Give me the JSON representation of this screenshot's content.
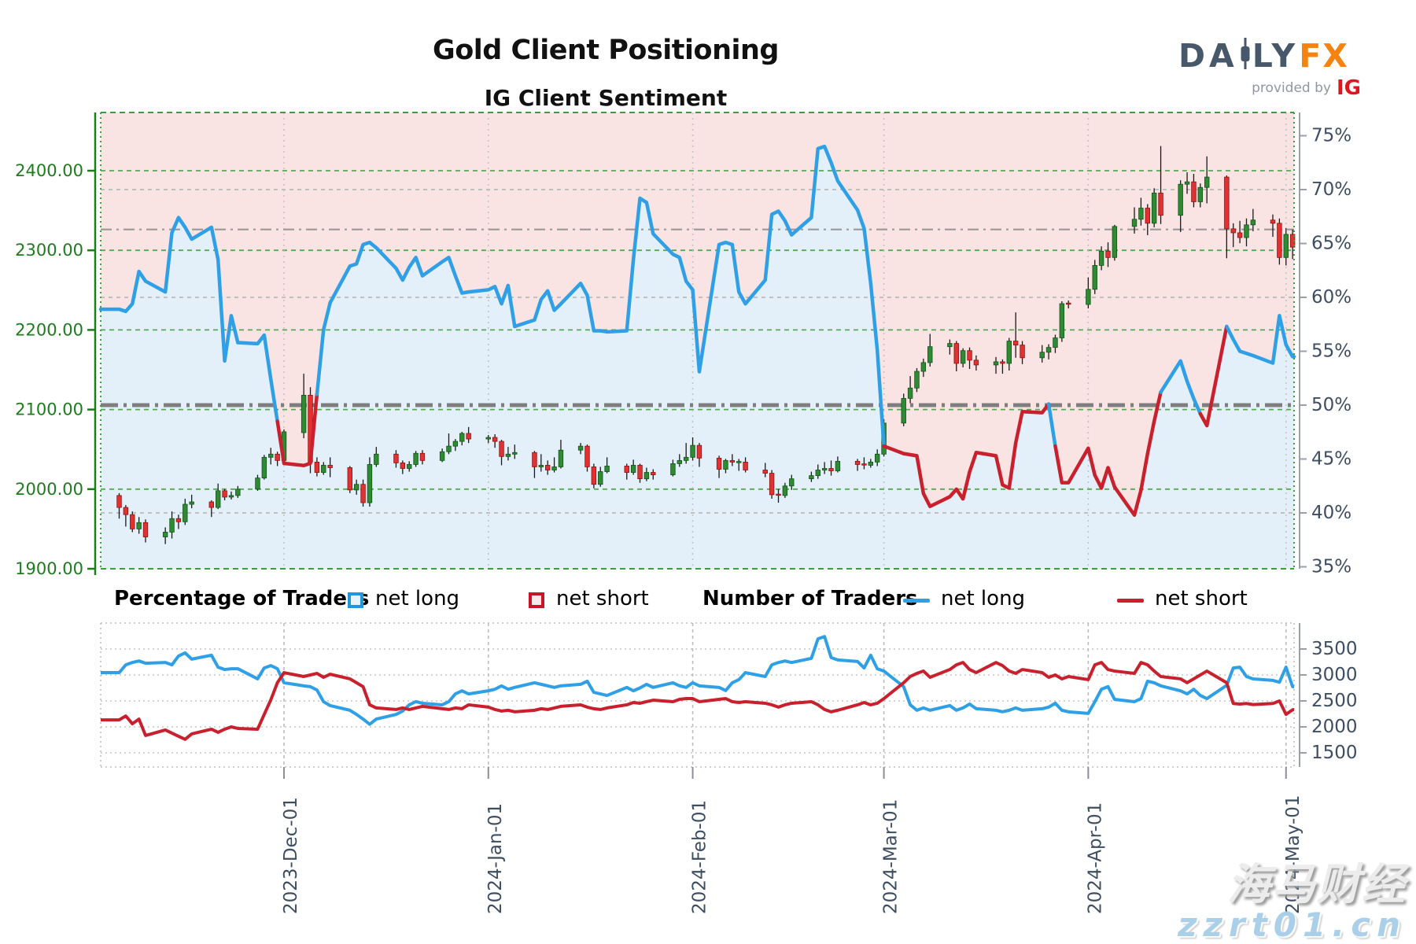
{
  "header": {
    "title": "Gold Client Positioning",
    "subtitle": "IG Client Sentiment"
  },
  "logo": {
    "daily_left": "DA",
    "daily_right": "LY",
    "fx": "FX",
    "provided_by": "provided by",
    "ig": "IG"
  },
  "watermark": {
    "line1": "海马财经",
    "line2": "zzrt01.cn"
  },
  "legend": {
    "pct_title": "Percentage of Traders",
    "pct_long": "net long",
    "pct_short": "net short",
    "num_title": "Number of Traders",
    "num_long": "net long",
    "num_short": "net short"
  },
  "colors": {
    "sentiment_long_line": "#2f9fe6",
    "sentiment_short_line": "#c9202e",
    "fill_above": "#f9e3e3",
    "fill_below": "#e3f0fa",
    "candle_up": "#2f8b33",
    "candle_up_edge": "#145317",
    "candle_down": "#e23131",
    "candle_down_edge": "#8e1111",
    "wick": "#1a1a1a",
    "price_axis": "#1e7b1e",
    "grid_green": "#58a858",
    "grid_gray": "#b9b9b9",
    "dashdot": "#7e7e7e",
    "month_grid": "#c3c3c3",
    "right_axis_text": "#3d4e63",
    "axis_line_gray": "#9aa0a8",
    "traders_long": "#2f9fe6",
    "traders_short": "#c9202e"
  },
  "chart_data": {
    "type": "candlestick+line",
    "title": "IG Client Sentiment",
    "price_axis": {
      "labels": [
        "2400.00",
        "2300.00",
        "2200.00",
        "2100.00",
        "2000.00",
        "1900.00"
      ],
      "values": [
        2400,
        2300,
        2200,
        2100,
        2000,
        1900
      ]
    },
    "pct_axis": {
      "labels": [
        "75%",
        "70%",
        "65%",
        "60%",
        "55%",
        "50%",
        "45%",
        "40%",
        "35%"
      ],
      "values": [
        75,
        70,
        65,
        60,
        55,
        50,
        45,
        40,
        35
      ]
    },
    "count_axis": {
      "labels": [
        "3500",
        "3000",
        "2500",
        "2000",
        "1500"
      ],
      "values": [
        3500,
        3000,
        2500,
        2000,
        1500
      ]
    },
    "x_axis": {
      "months": [
        {
          "label": "2023-Dec-01",
          "date": "2023-12-01"
        },
        {
          "label": "2024-Jan-01",
          "date": "2024-01-01"
        },
        {
          "label": "2024-Feb-01",
          "date": "2024-02-01"
        },
        {
          "label": "2024-Mar-01",
          "date": "2024-03-01"
        },
        {
          "label": "2024-Apr-01",
          "date": "2024-04-01"
        },
        {
          "label": "2024-May-01",
          "date": "2024-05-01"
        }
      ]
    },
    "reference_lines": {
      "bold_dashdot_pct": 50,
      "thin_dashdot_pct": 66.3,
      "gray_dashed_pct": [
        70,
        60,
        40
      ],
      "green_dashed_price": [
        2400,
        2300,
        2200,
        2100,
        2000
      ]
    },
    "dates": [
      "2023-11-06",
      "2023-11-07",
      "2023-11-08",
      "2023-11-09",
      "2023-11-10",
      "2023-11-13",
      "2023-11-14",
      "2023-11-15",
      "2023-11-16",
      "2023-11-17",
      "2023-11-20",
      "2023-11-21",
      "2023-11-22",
      "2023-11-23",
      "2023-11-24",
      "2023-11-27",
      "2023-11-28",
      "2023-11-29",
      "2023-11-30",
      "2023-12-01",
      "2023-12-04",
      "2023-12-05",
      "2023-12-06",
      "2023-12-07",
      "2023-12-08",
      "2023-12-11",
      "2023-12-12",
      "2023-12-13",
      "2023-12-14",
      "2023-12-15",
      "2023-12-18",
      "2023-12-19",
      "2023-12-20",
      "2023-12-21",
      "2023-12-22",
      "2023-12-25",
      "2023-12-26",
      "2023-12-27",
      "2023-12-28",
      "2023-12-29",
      "2024-01-01",
      "2024-01-02",
      "2024-01-03",
      "2024-01-04",
      "2024-01-05",
      "2024-01-08",
      "2024-01-09",
      "2024-01-10",
      "2024-01-11",
      "2024-01-12",
      "2024-01-15",
      "2024-01-16",
      "2024-01-17",
      "2024-01-18",
      "2024-01-19",
      "2024-01-22",
      "2024-01-23",
      "2024-01-24",
      "2024-01-25",
      "2024-01-26",
      "2024-01-29",
      "2024-01-30",
      "2024-01-31",
      "2024-02-01",
      "2024-02-02",
      "2024-02-05",
      "2024-02-06",
      "2024-02-07",
      "2024-02-08",
      "2024-02-09",
      "2024-02-12",
      "2024-02-13",
      "2024-02-14",
      "2024-02-15",
      "2024-02-16",
      "2024-02-19",
      "2024-02-20",
      "2024-02-21",
      "2024-02-22",
      "2024-02-23",
      "2024-02-26",
      "2024-02-27",
      "2024-02-28",
      "2024-02-29",
      "2024-03-01",
      "2024-03-04",
      "2024-03-05",
      "2024-03-06",
      "2024-03-07",
      "2024-03-08",
      "2024-03-11",
      "2024-03-12",
      "2024-03-13",
      "2024-03-14",
      "2024-03-15",
      "2024-03-18",
      "2024-03-19",
      "2024-03-20",
      "2024-03-21",
      "2024-03-22",
      "2024-03-25",
      "2024-03-26",
      "2024-03-27",
      "2024-03-28",
      "2024-03-29",
      "2024-04-01",
      "2024-04-02",
      "2024-04-03",
      "2024-04-04",
      "2024-04-05",
      "2024-04-08",
      "2024-04-09",
      "2024-04-10",
      "2024-04-11",
      "2024-04-12",
      "2024-04-15",
      "2024-04-16",
      "2024-04-17",
      "2024-04-18",
      "2024-04-19",
      "2024-04-22",
      "2024-04-23",
      "2024-04-24",
      "2024-04-25",
      "2024-04-26",
      "2024-04-29",
      "2024-04-30",
      "2024-05-01",
      "2024-05-02"
    ],
    "candles_ohlc": [
      [
        1992,
        1995,
        1963,
        1977
      ],
      [
        1977,
        1980,
        1953,
        1968
      ],
      [
        1968,
        1972,
        1946,
        1950
      ],
      [
        1950,
        1965,
        1944,
        1958
      ],
      [
        1958,
        1962,
        1933,
        1940
      ],
      [
        1940,
        1952,
        1931,
        1946
      ],
      [
        1946,
        1972,
        1938,
        1963
      ],
      [
        1963,
        1968,
        1950,
        1959
      ],
      [
        1959,
        1988,
        1955,
        1981
      ],
      [
        1981,
        1993,
        1976,
        1984
      ],
      [
        1984,
        1986,
        1965,
        1977
      ],
      [
        1977,
        2007,
        1975,
        1998
      ],
      [
        1998,
        2000,
        1986,
        1990
      ],
      [
        1990,
        1997,
        1987,
        1992
      ],
      [
        1992,
        2004,
        1989,
        2000
      ],
      [
        2000,
        2018,
        1998,
        2014
      ],
      [
        2014,
        2043,
        2012,
        2040
      ],
      [
        2040,
        2052,
        2031,
        2044
      ],
      [
        2044,
        2047,
        2029,
        2036
      ],
      [
        2036,
        2075,
        2031,
        2072
      ],
      [
        2071,
        2145,
        2064,
        2118
      ],
      [
        2118,
        2128,
        2020,
        2034
      ],
      [
        2034,
        2040,
        2016,
        2021
      ],
      [
        2021,
        2034,
        2018,
        2030
      ],
      [
        2030,
        2040,
        2015,
        2027
      ],
      [
        2027,
        2029,
        1995,
        1999
      ],
      [
        1999,
        2012,
        1993,
        2006
      ],
      [
        2006,
        2012,
        1978,
        1983
      ],
      [
        1983,
        2040,
        1978,
        2031
      ],
      [
        2031,
        2053,
        2028,
        2044
      ],
      [
        2044,
        2049,
        2027,
        2033
      ],
      [
        2033,
        2036,
        2019,
        2026
      ],
      [
        2026,
        2035,
        2022,
        2031
      ],
      [
        2031,
        2048,
        2028,
        2045
      ],
      [
        2045,
        2049,
        2031,
        2036
      ],
      [
        2036,
        2051,
        2034,
        2047
      ],
      [
        2047,
        2070,
        2044,
        2054
      ],
      [
        2054,
        2063,
        2048,
        2060
      ],
      [
        2060,
        2072,
        2055,
        2070
      ],
      [
        2070,
        2078,
        2058,
        2063
      ],
      [
        2063,
        2068,
        2058,
        2065
      ],
      [
        2065,
        2069,
        2052,
        2060
      ],
      [
        2060,
        2062,
        2030,
        2041
      ],
      [
        2041,
        2053,
        2036,
        2044
      ],
      [
        2044,
        2056,
        2038,
        2046
      ],
      [
        2046,
        2048,
        2014,
        2028
      ],
      [
        2028,
        2044,
        2022,
        2030
      ],
      [
        2030,
        2036,
        2018,
        2024
      ],
      [
        2024,
        2040,
        2021,
        2028
      ],
      [
        2028,
        2062,
        2026,
        2049
      ],
      [
        2049,
        2058,
        2044,
        2054
      ],
      [
        2054,
        2056,
        2022,
        2028
      ],
      [
        2028,
        2032,
        2001,
        2006
      ],
      [
        2006,
        2028,
        2003,
        2022
      ],
      [
        2022,
        2040,
        2020,
        2029
      ],
      [
        2029,
        2032,
        2012,
        2021
      ],
      [
        2021,
        2037,
        2018,
        2030
      ],
      [
        2030,
        2032,
        2008,
        2013
      ],
      [
        2013,
        2027,
        2010,
        2021
      ],
      [
        2021,
        2025,
        2012,
        2018
      ],
      [
        2018,
        2037,
        2016,
        2032
      ],
      [
        2032,
        2044,
        2028,
        2036
      ],
      [
        2036,
        2058,
        2032,
        2040
      ],
      [
        2040,
        2065,
        2036,
        2055
      ],
      [
        2055,
        2058,
        2028,
        2039
      ],
      [
        2039,
        2042,
        2014,
        2025
      ],
      [
        2025,
        2038,
        2020,
        2036
      ],
      [
        2036,
        2044,
        2029,
        2034
      ],
      [
        2034,
        2038,
        2023,
        2034
      ],
      [
        2034,
        2040,
        2021,
        2024
      ],
      [
        2024,
        2033,
        2015,
        2020
      ],
      [
        2020,
        2024,
        1988,
        1993
      ],
      [
        1993,
        2000,
        1983,
        1992
      ],
      [
        1992,
        2008,
        1989,
        2004
      ],
      [
        2004,
        2018,
        1999,
        2013
      ],
      [
        2013,
        2022,
        2009,
        2017
      ],
      [
        2017,
        2031,
        2013,
        2024
      ],
      [
        2024,
        2034,
        2019,
        2026
      ],
      [
        2026,
        2036,
        2017,
        2023
      ],
      [
        2023,
        2041,
        2021,
        2035
      ],
      [
        2035,
        2038,
        2023,
        2031
      ],
      [
        2031,
        2040,
        2025,
        2030
      ],
      [
        2030,
        2038,
        2027,
        2034
      ],
      [
        2034,
        2050,
        2029,
        2044
      ],
      [
        2044,
        2088,
        2041,
        2083
      ],
      [
        2083,
        2120,
        2079,
        2114
      ],
      [
        2114,
        2142,
        2108,
        2127
      ],
      [
        2127,
        2152,
        2122,
        2148
      ],
      [
        2148,
        2164,
        2141,
        2159
      ],
      [
        2159,
        2195,
        2154,
        2179
      ],
      [
        2179,
        2188,
        2169,
        2183
      ],
      [
        2183,
        2186,
        2148,
        2158
      ],
      [
        2158,
        2177,
        2153,
        2174
      ],
      [
        2174,
        2178,
        2151,
        2162
      ],
      [
        2162,
        2168,
        2149,
        2156
      ],
      [
        2156,
        2166,
        2145,
        2160
      ],
      [
        2160,
        2163,
        2145,
        2158
      ],
      [
        2158,
        2190,
        2149,
        2186
      ],
      [
        2186,
        2222,
        2165,
        2181
      ],
      [
        2181,
        2186,
        2157,
        2165
      ],
      [
        2165,
        2181,
        2159,
        2172
      ],
      [
        2172,
        2182,
        2163,
        2178
      ],
      [
        2178,
        2194,
        2171,
        2190
      ],
      [
        2190,
        2236,
        2185,
        2233
      ],
      [
        2233,
        2237,
        2227,
        2232
      ],
      [
        2232,
        2266,
        2227,
        2251
      ],
      [
        2251,
        2288,
        2245,
        2281
      ],
      [
        2281,
        2305,
        2275,
        2299
      ],
      [
        2299,
        2310,
        2279,
        2291
      ],
      [
        2291,
        2332,
        2287,
        2330
      ],
      [
        2330,
        2354,
        2321,
        2339
      ],
      [
        2339,
        2366,
        2331,
        2353
      ],
      [
        2353,
        2358,
        2319,
        2334
      ],
      [
        2334,
        2378,
        2329,
        2372
      ],
      [
        2372,
        2431,
        2333,
        2344
      ],
      [
        2344,
        2388,
        2323,
        2383
      ],
      [
        2383,
        2398,
        2371,
        2386
      ],
      [
        2386,
        2396,
        2354,
        2361
      ],
      [
        2361,
        2384,
        2354,
        2379
      ],
      [
        2379,
        2418,
        2359,
        2392
      ],
      [
        2392,
        2394,
        2290,
        2327
      ],
      [
        2327,
        2334,
        2304,
        2322
      ],
      [
        2322,
        2337,
        2309,
        2316
      ],
      [
        2316,
        2340,
        2305,
        2332
      ],
      [
        2332,
        2352,
        2324,
        2338
      ],
      [
        2338,
        2345,
        2317,
        2334
      ],
      [
        2334,
        2340,
        2282,
        2291
      ],
      [
        2291,
        2328,
        2281,
        2320
      ],
      [
        2320,
        2326,
        2289,
        2304
      ]
    ],
    "sentiment_net_long_pct": [
      58.9,
      58.7,
      59.4,
      62.4,
      61.5,
      60.5,
      66.0,
      67.4,
      66.5,
      65.4,
      66.5,
      63.5,
      54.1,
      58.3,
      55.8,
      55.7,
      56.5,
      52.4,
      48.5,
      44.6,
      44.4,
      44.6,
      51.0,
      57.0,
      59.5,
      62.9,
      63.1,
      64.9,
      65.1,
      64.6,
      62.7,
      61.6,
      62.8,
      63.7,
      62.0,
      63.3,
      63.7,
      62.0,
      60.4,
      60.5,
      60.7,
      61.0,
      59.4,
      61.1,
      57.3,
      57.9,
      59.8,
      60.6,
      58.8,
      59.4,
      61.3,
      60.2,
      56.9,
      56.9,
      56.8,
      56.9,
      63.5,
      69.2,
      68.8,
      65.9,
      64.0,
      63.7,
      61.5,
      60.7,
      53.1,
      64.9,
      65.1,
      64.9,
      60.5,
      59.4,
      61.6,
      67.7,
      68.0,
      67.1,
      65.8,
      67.4,
      73.8,
      74.0,
      72.5,
      70.8,
      68.1,
      66.4,
      61.3,
      55.1,
      46.2,
      45.5,
      45.4,
      45.3,
      41.8,
      40.6,
      41.5,
      42.2,
      41.3,
      43.8,
      45.6,
      45.3,
      42.6,
      42.3,
      46.5,
      49.4,
      49.3,
      50.1,
      46.2,
      42.8,
      42.8,
      46.0,
      43.5,
      42.3,
      44.2,
      42.4,
      39.8,
      42.1,
      45.5,
      48.5,
      51.2,
      54.1,
      52.2,
      50.6,
      49.2,
      48.1,
      57.3,
      56.1,
      55.0,
      54.8,
      54.6,
      53.9,
      58.3,
      55.6,
      54.5
    ],
    "traders_net_long": [
      3045,
      3195,
      3240,
      3270,
      3225,
      3240,
      3195,
      3365,
      3425,
      3305,
      3380,
      3150,
      3105,
      3120,
      3120,
      2925,
      3135,
      3180,
      3120,
      2850,
      2790,
      2775,
      2710,
      2485,
      2410,
      2320,
      2240,
      2150,
      2050,
      2150,
      2240,
      2305,
      2425,
      2485,
      2455,
      2425,
      2485,
      2635,
      2695,
      2635,
      2695,
      2725,
      2790,
      2725,
      2760,
      2850,
      2820,
      2790,
      2760,
      2790,
      2820,
      2880,
      2665,
      2635,
      2605,
      2760,
      2695,
      2750,
      2820,
      2760,
      2850,
      2790,
      2760,
      2850,
      2790,
      2760,
      2700,
      2850,
      2910,
      3045,
      2970,
      3195,
      3240,
      3270,
      3240,
      3320,
      3695,
      3740,
      3335,
      3290,
      3260,
      3135,
      3380,
      3120,
      3075,
      2775,
      2425,
      2320,
      2365,
      2320,
      2410,
      2320,
      2365,
      2440,
      2350,
      2320,
      2290,
      2320,
      2365,
      2320,
      2350,
      2380,
      2455,
      2320,
      2290,
      2260,
      2485,
      2725,
      2775,
      2530,
      2485,
      2545,
      2880,
      2850,
      2790,
      2695,
      2635,
      2725,
      2605,
      2545,
      2800,
      3135,
      3150,
      2970,
      2925,
      2895,
      2860,
      3150,
      2775
    ],
    "traders_net_short": [
      2135,
      2210,
      2060,
      2150,
      1835,
      1940,
      1880,
      1820,
      1760,
      1865,
      1955,
      1895,
      1955,
      2000,
      1970,
      1955,
      2240,
      2520,
      2850,
      3045,
      2970,
      3000,
      3030,
      2955,
      3015,
      2925,
      2850,
      2775,
      2425,
      2365,
      2335,
      2365,
      2335,
      2365,
      2395,
      2350,
      2335,
      2365,
      2350,
      2425,
      2380,
      2335,
      2305,
      2320,
      2290,
      2320,
      2350,
      2335,
      2365,
      2395,
      2425,
      2380,
      2350,
      2335,
      2365,
      2425,
      2470,
      2455,
      2485,
      2515,
      2485,
      2530,
      2545,
      2545,
      2485,
      2530,
      2545,
      2485,
      2470,
      2485,
      2455,
      2425,
      2380,
      2425,
      2455,
      2485,
      2425,
      2335,
      2290,
      2320,
      2425,
      2470,
      2425,
      2455,
      2545,
      2850,
      2970,
      3030,
      3075,
      2955,
      3105,
      3195,
      3240,
      3105,
      3045,
      3240,
      3180,
      3075,
      3030,
      3105,
      3045,
      2955,
      3000,
      2925,
      2970,
      2910,
      3195,
      3240,
      3105,
      3075,
      3030,
      3240,
      3195,
      3075,
      2970,
      2925,
      2850,
      2925,
      3000,
      3075,
      2850,
      2450,
      2440,
      2450,
      2430,
      2450,
      2500,
      2240,
      2330
    ]
  }
}
